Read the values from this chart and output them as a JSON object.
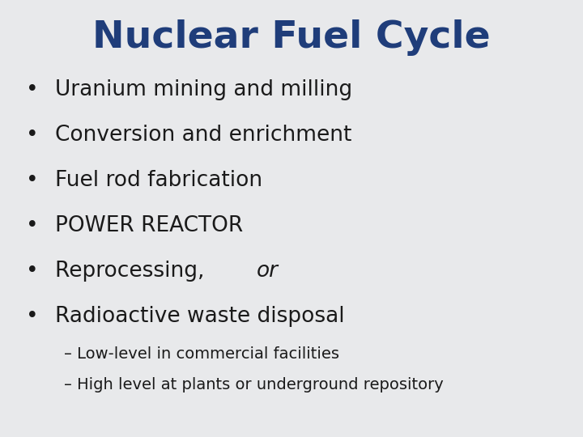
{
  "title": "Nuclear Fuel Cycle",
  "title_color": "#1F3D7A",
  "title_fontsize": 34,
  "background_color": "#E8E9EB",
  "bullet_items": [
    "Uranium mining and milling",
    "Conversion and enrichment",
    "Fuel rod fabrication",
    "POWER REACTOR",
    "Reprocessing, ",
    "Radioactive waste disposal"
  ],
  "bullet_fontsize": 19,
  "bullet_color": "#1a1a1a",
  "sub_items": [
    "– Low-level in commercial facilities",
    "– High level at plants or underground repository"
  ],
  "sub_fontsize": 14,
  "sub_color": "#1a1a1a",
  "bullet_char": "•"
}
